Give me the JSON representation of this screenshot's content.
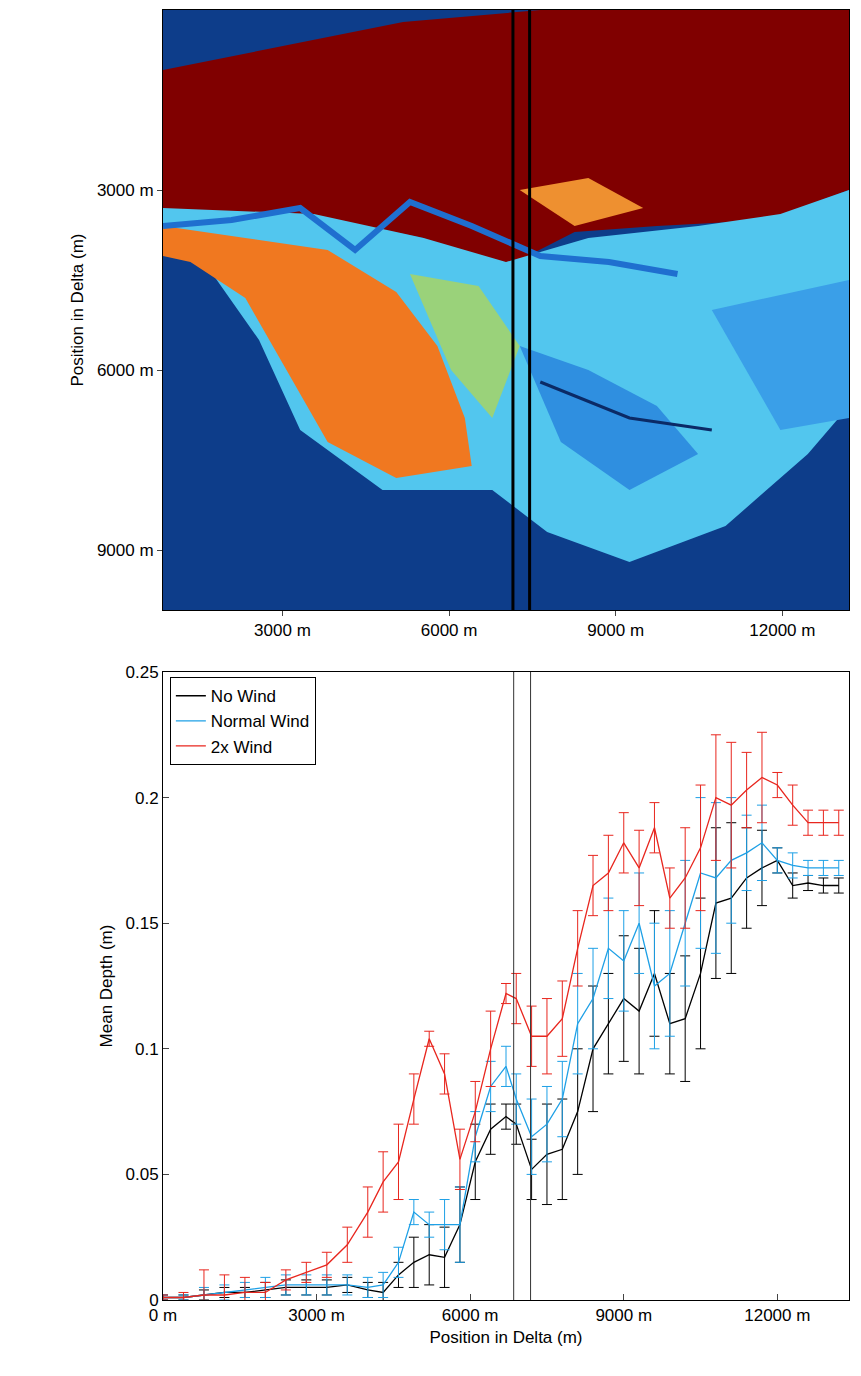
{
  "chart_data": [
    {
      "type": "map",
      "ylabel": "Position in Delta (m)",
      "xlim": [
        850,
        13200
      ],
      "ylim": [
        10000,
        0
      ],
      "xticks": [
        {
          "value": 3000,
          "label": "3000 m"
        },
        {
          "value": 6000,
          "label": "6000 m"
        },
        {
          "value": 9000,
          "label": "9000 m"
        },
        {
          "value": 12000,
          "label": "12000 m"
        }
      ],
      "yticks": [
        {
          "value": 3000,
          "label": "3000 m"
        },
        {
          "value": 6000,
          "label": "6000 m"
        },
        {
          "value": 9000,
          "label": "9000 m"
        }
      ],
      "vlines": [
        7150,
        7450
      ],
      "grid": false
    },
    {
      "type": "line",
      "xlabel": "Position in Delta (m)",
      "ylabel": "Mean Depth (m)",
      "xlim": [
        0,
        13400
      ],
      "ylim": [
        0,
        0.25
      ],
      "xticks": [
        {
          "value": 0,
          "label": "0 m"
        },
        {
          "value": 3000,
          "label": "3000 m"
        },
        {
          "value": 6000,
          "label": "6000 m"
        },
        {
          "value": 9000,
          "label": "9000 m"
        },
        {
          "value": 12000,
          "label": "12000 m"
        }
      ],
      "yticks": [
        0,
        0.05,
        0.1,
        0.15,
        0.2,
        0.25
      ],
      "vlines": [
        6850,
        7180
      ],
      "grid": false,
      "legend": "upper left",
      "x": [
        0,
        400,
        800,
        1200,
        1600,
        2000,
        2400,
        2800,
        3200,
        3600,
        4000,
        4300,
        4600,
        4900,
        5200,
        5500,
        5800,
        6100,
        6400,
        6700,
        6900,
        7200,
        7500,
        7800,
        8100,
        8400,
        8700,
        9000,
        9300,
        9600,
        9900,
        10200,
        10500,
        10800,
        11100,
        11400,
        11700,
        12000,
        12300,
        12600,
        12900,
        13200
      ],
      "series": [
        {
          "name": "No Wind",
          "color": "#000000",
          "values": [
            0.001,
            0.001,
            0.002,
            0.003,
            0.003,
            0.004,
            0.005,
            0.005,
            0.005,
            0.006,
            0.004,
            0.003,
            0.01,
            0.015,
            0.018,
            0.017,
            0.03,
            0.055,
            0.068,
            0.073,
            0.07,
            0.052,
            0.058,
            0.06,
            0.075,
            0.1,
            0.11,
            0.12,
            0.115,
            0.13,
            0.11,
            0.112,
            0.13,
            0.158,
            0.16,
            0.168,
            0.172,
            0.175,
            0.165,
            0.166,
            0.165,
            0.165
          ],
          "errors": [
            0.001,
            0.001,
            0.002,
            0.002,
            0.002,
            0.003,
            0.003,
            0.003,
            0.003,
            0.003,
            0.003,
            0.004,
            0.005,
            0.01,
            0.012,
            0.012,
            0.015,
            0.015,
            0.01,
            0.005,
            0.008,
            0.012,
            0.02,
            0.02,
            0.025,
            0.025,
            0.02,
            0.025,
            0.025,
            0.025,
            0.02,
            0.025,
            0.03,
            0.03,
            0.03,
            0.02,
            0.015,
            0.005,
            0.005,
            0.003,
            0.003,
            0.003
          ]
        },
        {
          "name": "Normal Wind",
          "color": "#1ea0e6",
          "values": [
            0.001,
            0.001,
            0.002,
            0.003,
            0.004,
            0.005,
            0.006,
            0.006,
            0.006,
            0.006,
            0.005,
            0.006,
            0.015,
            0.035,
            0.03,
            0.03,
            0.03,
            0.065,
            0.085,
            0.093,
            0.08,
            0.065,
            0.07,
            0.08,
            0.11,
            0.12,
            0.14,
            0.135,
            0.15,
            0.125,
            0.13,
            0.15,
            0.17,
            0.168,
            0.175,
            0.178,
            0.182,
            0.175,
            0.173,
            0.172,
            0.172,
            0.172
          ],
          "errors": [
            0.001,
            0.001,
            0.003,
            0.003,
            0.003,
            0.004,
            0.004,
            0.004,
            0.004,
            0.004,
            0.004,
            0.005,
            0.006,
            0.005,
            0.005,
            0.01,
            0.015,
            0.01,
            0.01,
            0.008,
            0.01,
            0.015,
            0.015,
            0.015,
            0.02,
            0.02,
            0.02,
            0.02,
            0.02,
            0.025,
            0.025,
            0.025,
            0.03,
            0.03,
            0.025,
            0.015,
            0.015,
            0.005,
            0.005,
            0.003,
            0.003,
            0.003
          ]
        },
        {
          "name": "2x Wind",
          "color": "#e8261e",
          "values": [
            0.001,
            0.001,
            0.002,
            0.002,
            0.003,
            0.003,
            0.008,
            0.011,
            0.014,
            0.022,
            0.035,
            0.047,
            0.055,
            0.08,
            0.104,
            0.09,
            0.056,
            0.075,
            0.1,
            0.122,
            0.12,
            0.105,
            0.105,
            0.112,
            0.14,
            0.165,
            0.17,
            0.182,
            0.172,
            0.188,
            0.16,
            0.168,
            0.18,
            0.2,
            0.197,
            0.203,
            0.208,
            0.205,
            0.197,
            0.19,
            0.19,
            0.19
          ],
          "errors": [
            0.001,
            0.002,
            0.01,
            0.008,
            0.006,
            0.004,
            0.004,
            0.004,
            0.005,
            0.007,
            0.01,
            0.012,
            0.015,
            0.01,
            0.003,
            0.008,
            0.012,
            0.012,
            0.015,
            0.004,
            0.01,
            0.012,
            0.015,
            0.015,
            0.015,
            0.012,
            0.015,
            0.012,
            0.015,
            0.01,
            0.012,
            0.02,
            0.025,
            0.025,
            0.025,
            0.015,
            0.018,
            0.005,
            0.008,
            0.005,
            0.005,
            0.005
          ]
        }
      ]
    }
  ]
}
